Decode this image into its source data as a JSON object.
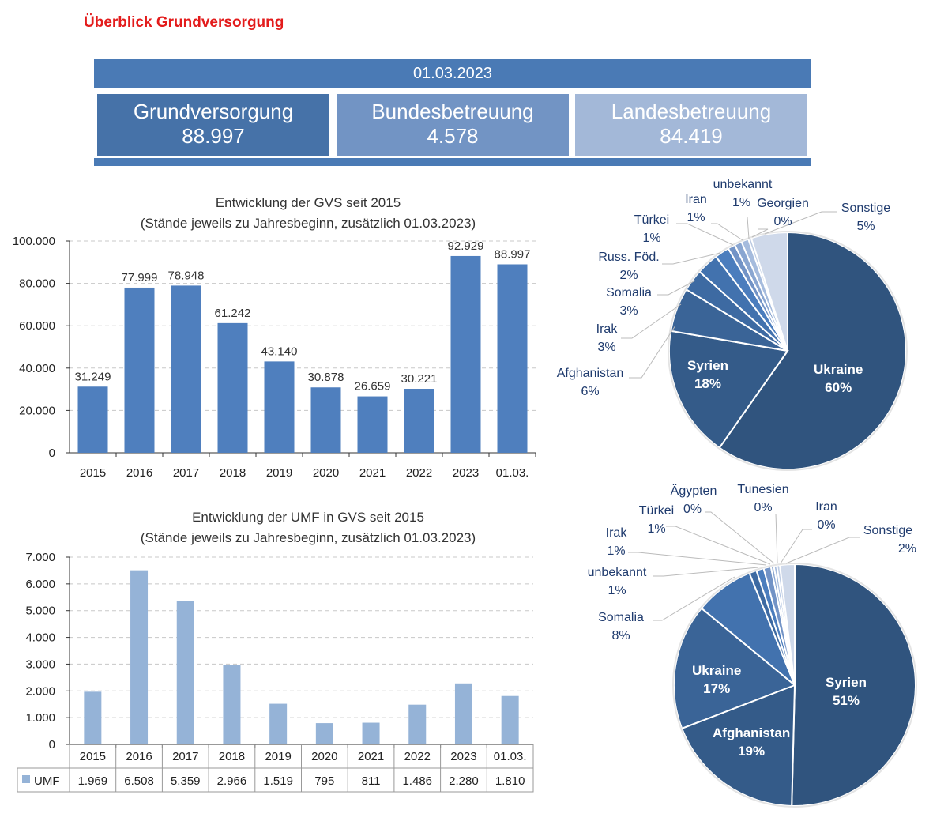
{
  "title": "Überblick Grundversorgung",
  "summary": {
    "date": "01.03.2023",
    "boxes": [
      {
        "label": "Grundversorgung",
        "value": "88.997",
        "color": "#4672a8"
      },
      {
        "label": "Bundesbetreuung",
        "value": "4.578",
        "color": "#7294c4"
      },
      {
        "label": "Landesbetreuung",
        "value": "84.419",
        "color": "#a3b8d8"
      }
    ]
  },
  "chart_data": [
    {
      "type": "bar",
      "title": "Entwicklung der GVS seit 2015",
      "subtitle": "(Stände jeweils zu Jahresbeginn, zusätzlich 01.03.2023)",
      "categories": [
        "2015",
        "2016",
        "2017",
        "2018",
        "2019",
        "2020",
        "2021",
        "2022",
        "2023",
        "01.03."
      ],
      "values": [
        31249,
        77999,
        78948,
        61242,
        43140,
        30878,
        26659,
        30221,
        92929,
        88997
      ],
      "data_labels": [
        "31.249",
        "77.999",
        "78.948",
        "61.242",
        "43.140",
        "30.878",
        "26.659",
        "30.221",
        "92.929",
        "88.997"
      ],
      "yticks": [
        "0",
        "20.000",
        "40.000",
        "60.000",
        "80.000",
        "100.000"
      ],
      "ylim": [
        0,
        100000
      ],
      "grid": true,
      "color": "#4f7fbe"
    },
    {
      "type": "bar",
      "title": "Entwicklung der UMF in GVS seit 2015",
      "subtitle": "(Stände jeweils zu Jahresbeginn, zusätzlich 01.03.2023)",
      "categories": [
        "2015",
        "2016",
        "2017",
        "2018",
        "2019",
        "2020",
        "2021",
        "2022",
        "2023",
        "01.03."
      ],
      "series": [
        {
          "name": "UMF",
          "values": [
            1969,
            6508,
            5359,
            2966,
            1519,
            795,
            811,
            1486,
            2280,
            1810
          ],
          "table_labels": [
            "1.969",
            "6.508",
            "5.359",
            "2.966",
            "1.519",
            "795",
            "811",
            "1.486",
            "2.280",
            "1.810"
          ]
        }
      ],
      "yticks": [
        "0",
        "1.000",
        "2.000",
        "3.000",
        "4.000",
        "5.000",
        "6.000",
        "7.000"
      ],
      "ylim": [
        0,
        7000
      ],
      "grid": true,
      "color": "#95b3d7",
      "data_table": true
    },
    {
      "type": "pie",
      "slices": [
        {
          "name": "Ukraine",
          "label": "60%",
          "value": 60,
          "color": "#30547e"
        },
        {
          "name": "Syrien",
          "label": "18%",
          "value": 18,
          "color": "#345b89"
        },
        {
          "name": "Afghanistan",
          "label": "6%",
          "value": 6,
          "color": "#3a6497"
        },
        {
          "name": "Irak",
          "label": "3%",
          "value": 3,
          "color": "#3d6aa2"
        },
        {
          "name": "Somalia",
          "label": "3%",
          "value": 3,
          "color": "#4272ae"
        },
        {
          "name": "Russ. Föd.",
          "label": "2%",
          "value": 2,
          "color": "#4b7dbd"
        },
        {
          "name": "Türkei",
          "label": "1%",
          "value": 1,
          "color": "#7293c6"
        },
        {
          "name": "Iran",
          "label": "1%",
          "value": 1,
          "color": "#8aa6d1"
        },
        {
          "name": "unbekannt",
          "label": "1%",
          "value": 1,
          "color": "#a5bbdd"
        },
        {
          "name": "Georgien",
          "label": "0%",
          "value": 0.4,
          "color": "#bccbe3"
        },
        {
          "name": "Sonstige",
          "label": "5%",
          "value": 5,
          "color": "#cfd9ea"
        }
      ]
    },
    {
      "type": "pie",
      "slices": [
        {
          "name": "Syrien",
          "label": "51%",
          "value": 51,
          "color": "#30547e"
        },
        {
          "name": "Afghanistan",
          "label": "19%",
          "value": 19,
          "color": "#345b89"
        },
        {
          "name": "Ukraine",
          "label": "17%",
          "value": 17,
          "color": "#3a6497"
        },
        {
          "name": "Somalia",
          "label": "8%",
          "value": 8,
          "color": "#4272ae"
        },
        {
          "name": "unbekannt",
          "label": "1%",
          "value": 1,
          "color": "#3d6aa2"
        },
        {
          "name": "Irak",
          "label": "1%",
          "value": 1,
          "color": "#4b7dbd"
        },
        {
          "name": "Türkei",
          "label": "1%",
          "value": 1,
          "color": "#7293c6"
        },
        {
          "name": "Ägypten",
          "label": "0%",
          "value": 0.4,
          "color": "#8aa6d1"
        },
        {
          "name": "Tunesien",
          "label": "0%",
          "value": 0.4,
          "color": "#a5bbdd"
        },
        {
          "name": "Iran",
          "label": "0%",
          "value": 0.4,
          "color": "#bccbe3"
        },
        {
          "name": "Sonstige",
          "label": "2%",
          "value": 2,
          "color": "#cfd9ea"
        }
      ]
    }
  ]
}
